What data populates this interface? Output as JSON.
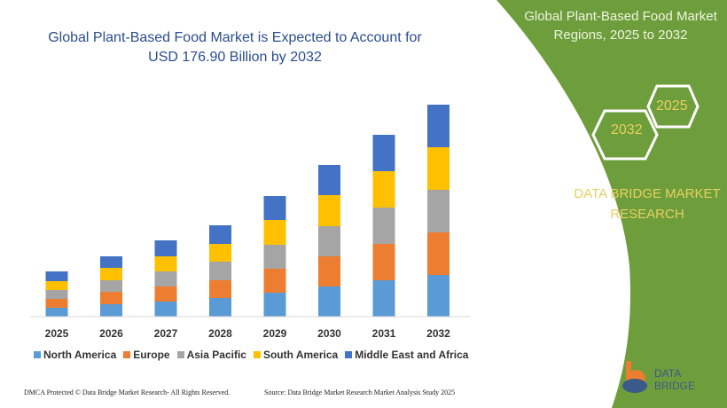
{
  "header": {
    "title_line1": "Global Plant-Based Food Market is Expected to Account for",
    "title_line2": "USD 176.90 Billion by 2032"
  },
  "side_panel": {
    "title_line1": "Global Plant-Based Food Market",
    "title_line2": "Regions, 2025 to 2032",
    "hex_1": "2025",
    "hex_2": "2032",
    "brand_line1": "DATA BRIDGE MARKET",
    "brand_line2": "RESEARCH",
    "logo_text": "DATA BRIDGE",
    "color": "#6e9e3c"
  },
  "footer": {
    "copyright": "DMCA Protected © Data Bridge Market Research- All Rights Reserved.",
    "source": "Source: Data Bridge Market Research Market Analysis Study 2025"
  },
  "chart_data": {
    "type": "bar",
    "stacked": true,
    "title": "",
    "xlabel": "",
    "ylabel": "",
    "grid": false,
    "legend": "bottom",
    "categories": [
      "2025",
      "2026",
      "2027",
      "2028",
      "2029",
      "2030",
      "2031",
      "2032"
    ],
    "series": [
      {
        "name": "North America",
        "color": "#5b9bd5",
        "values": [
          10,
          14,
          17,
          21,
          27,
          34,
          41,
          47
        ]
      },
      {
        "name": "Europe",
        "color": "#ed7d31",
        "values": [
          10,
          14,
          17,
          20,
          27,
          34,
          41,
          48
        ]
      },
      {
        "name": "Asia Pacific",
        "color": "#a5a5a5",
        "values": [
          10,
          13,
          17,
          21,
          27,
          34,
          41,
          48
        ]
      },
      {
        "name": "South America",
        "color": "#ffc000",
        "values": [
          10,
          14,
          17,
          20,
          28,
          35,
          41,
          48
        ]
      },
      {
        "name": "Middle East and Africa",
        "color": "#4472c4",
        "values": [
          11,
          13,
          18,
          21,
          27,
          34,
          41,
          48
        ]
      }
    ]
  }
}
